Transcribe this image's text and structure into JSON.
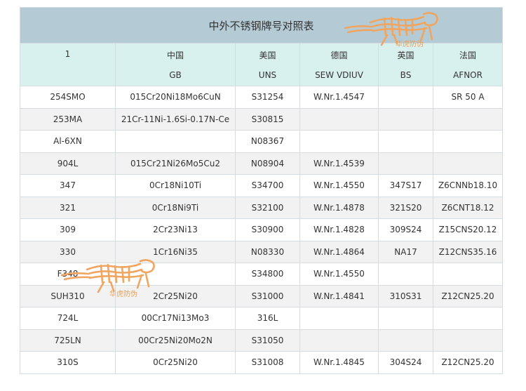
{
  "table": {
    "title": "中外不锈钢牌号对照表",
    "header": [
      {
        "cn": "1",
        "code": ""
      },
      {
        "cn": "中国",
        "code": "GB"
      },
      {
        "cn": "美国",
        "code": "UNS"
      },
      {
        "cn": "德国",
        "code": "SEW VDIUV"
      },
      {
        "cn": "英国",
        "code": "BS"
      },
      {
        "cn": "法国",
        "code": "AFNOR"
      }
    ],
    "rows": [
      {
        "grade": "254SMO",
        "gb": "015Cr20Ni18Mo6CuN",
        "uns": "S31254",
        "sew": "W.Nr.1.4547",
        "bs": "",
        "afnor": "SR 50 A"
      },
      {
        "grade": "253MA",
        "gb": "21Cr-11Ni-1.6Si-0.17N-Ce",
        "uns": "S30815",
        "sew": "",
        "bs": "",
        "afnor": ""
      },
      {
        "grade": "Al-6XN",
        "gb": "",
        "uns": "N08367",
        "sew": "",
        "bs": "",
        "afnor": ""
      },
      {
        "grade": "904L",
        "gb": "015Cr21Ni26Mo5Cu2",
        "uns": "N08904",
        "sew": "W.Nr.1.4539",
        "bs": "",
        "afnor": ""
      },
      {
        "grade": "347",
        "gb": "0Cr18Ni10Ti",
        "uns": "S34700",
        "sew": "W.Nr.1.4550",
        "bs": "347S17",
        "afnor": "Z6CNNb18.10"
      },
      {
        "grade": "321",
        "gb": "0Cr18Ni9Ti",
        "uns": "S32100",
        "sew": "W.Nr.1.4878",
        "bs": "321S20",
        "afnor": "Z6CNT18.12"
      },
      {
        "grade": "309",
        "gb": "2Cr23Ni13",
        "uns": "S30900",
        "sew": "W.Nr.1.4828",
        "bs": "309S24",
        "afnor": "Z15CNS20.12"
      },
      {
        "grade": "330",
        "gb": "1Cr16Ni35",
        "uns": "N08330",
        "sew": "W.Nr.1.4864",
        "bs": "NA17",
        "afnor": "Z12CNS35.16"
      },
      {
        "grade": "F348",
        "gb": "",
        "uns": "S34800",
        "sew": "W.Nr.1.4550",
        "bs": "",
        "afnor": ""
      },
      {
        "grade": "SUH310",
        "gb": "2Cr25Ni20",
        "uns": "S31000",
        "sew": "W.Nr.1.4841",
        "bs": "310S31",
        "afnor": "Z12CN25.20"
      },
      {
        "grade": "724L",
        "gb": "00Cr17Ni13Mo3",
        "uns": "316L",
        "sew": "",
        "bs": "",
        "afnor": ""
      },
      {
        "grade": "725LN",
        "gb": "00Cr25Ni20Mo2N",
        "uns": "S31050",
        "sew": "",
        "bs": "",
        "afnor": ""
      },
      {
        "grade": "310S",
        "gb": "0Cr25Ni20",
        "uns": "S31008",
        "sew": "W.Nr.1.4845",
        "bs": "304S24",
        "afnor": "Z12CN25.20"
      }
    ]
  },
  "watermark": {
    "text": "华虎防伪",
    "icon": "tiger-icon",
    "color": "#e8a05a"
  }
}
